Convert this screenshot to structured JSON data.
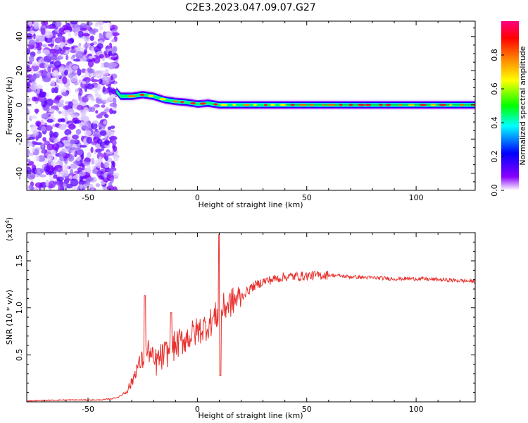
{
  "title": "C2E3.2023.047.09.07.G27",
  "chart_data": [
    {
      "type": "heatmap",
      "xlabel": "Height of straight line (km)",
      "ylabel": "Frequency (Hz)",
      "xlim": [
        -78,
        127
      ],
      "ylim": [
        -50,
        49
      ],
      "xticks": [
        -50,
        0,
        50,
        100
      ],
      "yticks": [
        -40,
        -20,
        0,
        20,
        40
      ],
      "colorbar": {
        "label": "Normalized spectral amplitude",
        "range": [
          0,
          1
        ],
        "ticks": [
          "0.0",
          "0.2",
          "0.4",
          "0.6",
          "0.8"
        ],
        "tick_values": [
          0.0,
          0.2,
          0.4,
          0.6,
          0.8
        ],
        "colors": [
          "#ffffff",
          "#8a00ff",
          "#0000ff",
          "#00ffff",
          "#00ff00",
          "#ffff00",
          "#ff8000",
          "#ff0000",
          "#ff0080"
        ]
      },
      "noise_region_x": [
        -78,
        -37
      ],
      "signal_trace": {
        "x": [
          -37,
          -35,
          -30,
          -25,
          -20,
          -15,
          -10,
          -5,
          0,
          5,
          10,
          20,
          30,
          50,
          70,
          100,
          127
        ],
        "frequency_hz": [
          8,
          5,
          5,
          6,
          5,
          3,
          2,
          1.5,
          0.5,
          1,
          0,
          0,
          0,
          0,
          0,
          0,
          0
        ]
      }
    },
    {
      "type": "line",
      "xlabel": "Height of straight line (km)",
      "ylabel": "SNR (10 * v/v)",
      "scale_note": "(x10",
      "scale_exp": "4",
      "scale_close": ")",
      "xlim": [
        -78,
        127
      ],
      "ylim": [
        0,
        1.8
      ],
      "xticks": [
        -50,
        0,
        50,
        100
      ],
      "yticks": [
        0.5,
        1.0,
        1.5
      ],
      "ytick_labels": [
        "0.5",
        "1.0",
        "1.5"
      ],
      "series_color": "#e8312e",
      "x": [
        -78,
        -60,
        -45,
        -40,
        -36,
        -33,
        -30,
        -28,
        -25,
        -22,
        -20,
        -15,
        -10,
        -5,
        0,
        5,
        8,
        10,
        12,
        15,
        20,
        25,
        30,
        40,
        50,
        60,
        70,
        80,
        90,
        100,
        110,
        120,
        127
      ],
      "y": [
        0.01,
        0.02,
        0.02,
        0.03,
        0.05,
        0.1,
        0.2,
        0.35,
        0.45,
        0.55,
        0.4,
        0.5,
        0.6,
        0.68,
        0.75,
        0.82,
        0.9,
        0.95,
        1.0,
        1.05,
        1.12,
        1.22,
        1.28,
        1.33,
        1.34,
        1.35,
        1.33,
        1.32,
        1.31,
        1.31,
        1.3,
        1.29,
        1.28
      ],
      "spikes": [
        {
          "x": 10,
          "y": 1.78
        },
        {
          "x": -24,
          "y": 1.13
        },
        {
          "x": -12,
          "y": 0.95
        },
        {
          "x": 10.5,
          "y": 0.28
        }
      ]
    }
  ]
}
